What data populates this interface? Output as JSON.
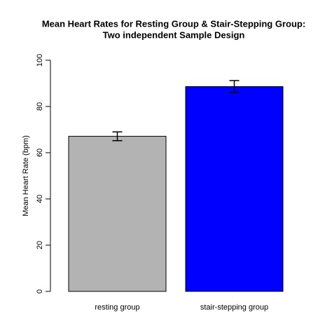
{
  "chart_data": {
    "type": "bar",
    "title": [
      "Mean Heart Rates for Resting Group & Stair-Stepping Group:",
      "Two independent Sample Design"
    ],
    "y_label": "Mean Heart Rate (bpm)",
    "categories": [
      "resting group",
      "stair-stepping group"
    ],
    "values": [
      67.1,
      88.6
    ],
    "errors": [
      1.9,
      2.6
    ],
    "colors": [
      "#b3b3b3",
      "#0000ff"
    ],
    "ylim": [
      0,
      100
    ],
    "yticks": [
      0,
      20,
      40,
      60,
      80,
      100
    ],
    "grid": false
  }
}
